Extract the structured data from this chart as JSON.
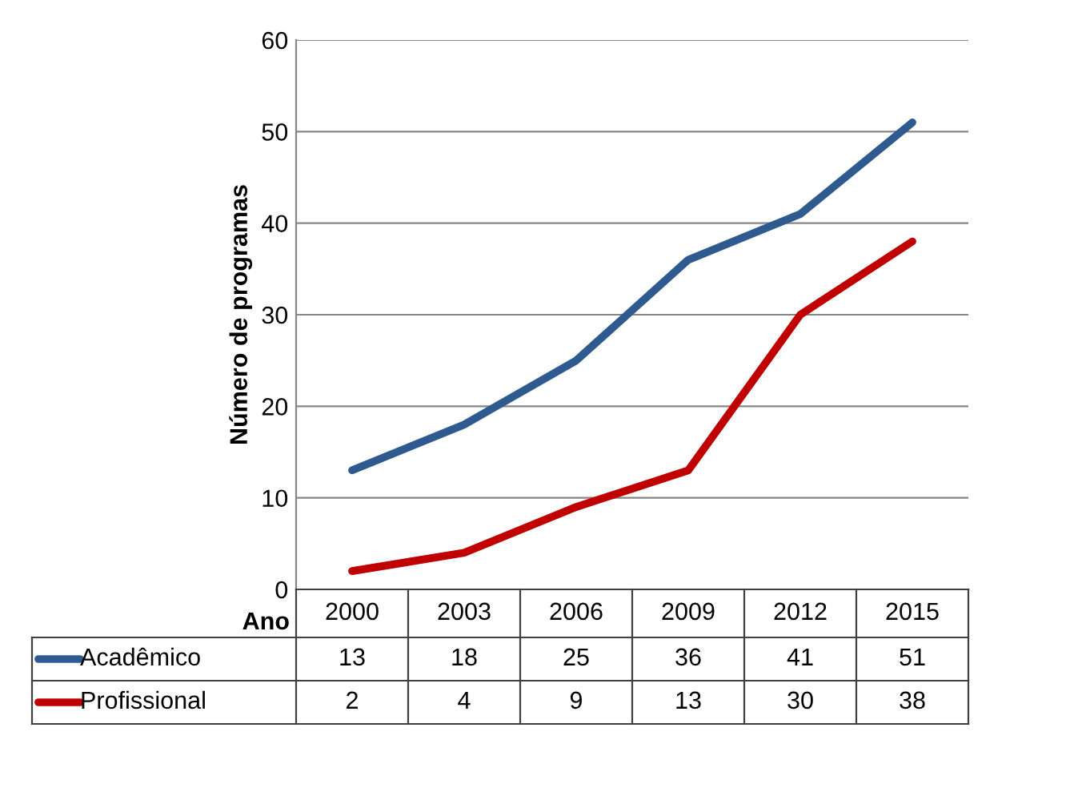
{
  "chart_data": {
    "type": "line",
    "xlabel": "Ano",
    "ylabel": "Número de programas",
    "categories": [
      "2000",
      "2003",
      "2006",
      "2009",
      "2012",
      "2015"
    ],
    "series": [
      {
        "name": "Acadêmico",
        "color": "#2e5a8f",
        "values": [
          13,
          18,
          25,
          36,
          41,
          51
        ]
      },
      {
        "name": "Profissional",
        "color": "#c00000",
        "values": [
          2,
          4,
          9,
          13,
          30,
          38
        ]
      }
    ],
    "ylim": [
      0,
      60
    ],
    "yticks": [
      0,
      10,
      20,
      30,
      40,
      50,
      60
    ],
    "grid": "y",
    "legend": "bottom",
    "data_labels": true,
    "tick_labels": "y",
    "marker": "none",
    "line_style": "solid"
  }
}
